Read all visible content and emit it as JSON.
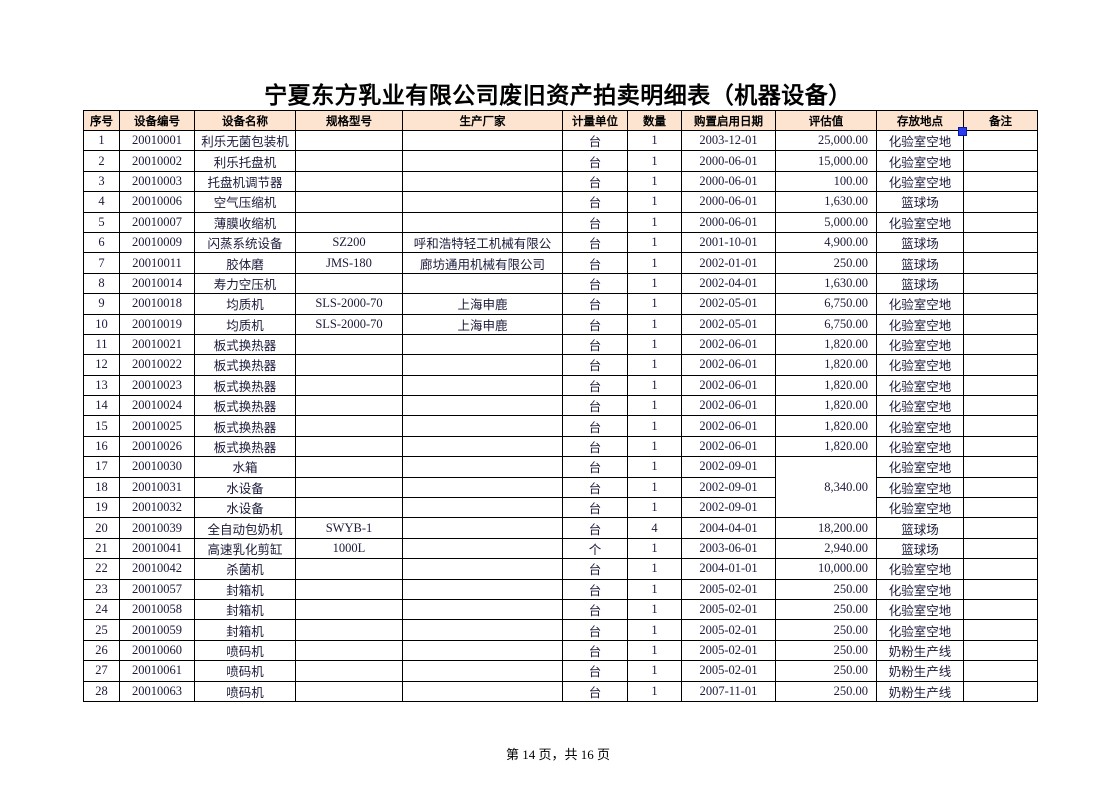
{
  "title": "宁夏东方乳业有限公司废旧资产拍卖明细表（机器设备）",
  "columns": [
    "序号",
    "设备编号",
    "设备名称",
    "规格型号",
    "生产厂家",
    "计量单位",
    "数量",
    "购置启用日期",
    "评估值",
    "存放地点",
    "备注"
  ],
  "rows": [
    [
      "1",
      "20010001",
      "利乐无菌包装机",
      "",
      "",
      "台",
      "1",
      "2003-12-01",
      "25,000.00",
      "化验室空地",
      ""
    ],
    [
      "2",
      "20010002",
      "利乐托盘机",
      "",
      "",
      "台",
      "1",
      "2000-06-01",
      "15,000.00",
      "化验室空地",
      ""
    ],
    [
      "3",
      "20010003",
      "托盘机调节器",
      "",
      "",
      "台",
      "1",
      "2000-06-01",
      "100.00",
      "化验室空地",
      ""
    ],
    [
      "4",
      "20010006",
      "空气压缩机",
      "",
      "",
      "台",
      "1",
      "2000-06-01",
      "1,630.00",
      "篮球场",
      ""
    ],
    [
      "5",
      "20010007",
      "薄膜收缩机",
      "",
      "",
      "台",
      "1",
      "2000-06-01",
      "5,000.00",
      "化验室空地",
      ""
    ],
    [
      "6",
      "20010009",
      "闪蒸系统设备",
      "SZ200",
      "呼和浩特轻工机械有限公",
      "台",
      "1",
      "2001-10-01",
      "4,900.00",
      "篮球场",
      ""
    ],
    [
      "7",
      "20010011",
      "胶体磨",
      "JMS-180",
      "廊坊通用机械有限公司",
      "台",
      "1",
      "2002-01-01",
      "250.00",
      "篮球场",
      ""
    ],
    [
      "8",
      "20010014",
      "寿力空压机",
      "",
      "",
      "台",
      "1",
      "2002-04-01",
      "1,630.00",
      "篮球场",
      ""
    ],
    [
      "9",
      "20010018",
      "均质机",
      "SLS-2000-70",
      "上海申鹿",
      "台",
      "1",
      "2002-05-01",
      "6,750.00",
      "化验室空地",
      ""
    ],
    [
      "10",
      "20010019",
      "均质机",
      "SLS-2000-70",
      "上海申鹿",
      "台",
      "1",
      "2002-05-01",
      "6,750.00",
      "化验室空地",
      ""
    ],
    [
      "11",
      "20010021",
      "板式换热器",
      "",
      "",
      "台",
      "1",
      "2002-06-01",
      "1,820.00",
      "化验室空地",
      ""
    ],
    [
      "12",
      "20010022",
      "板式换热器",
      "",
      "",
      "台",
      "1",
      "2002-06-01",
      "1,820.00",
      "化验室空地",
      ""
    ],
    [
      "13",
      "20010023",
      "板式换热器",
      "",
      "",
      "台",
      "1",
      "2002-06-01",
      "1,820.00",
      "化验室空地",
      ""
    ],
    [
      "14",
      "20010024",
      "板式换热器",
      "",
      "",
      "台",
      "1",
      "2002-06-01",
      "1,820.00",
      "化验室空地",
      ""
    ],
    [
      "15",
      "20010025",
      "板式换热器",
      "",
      "",
      "台",
      "1",
      "2002-06-01",
      "1,820.00",
      "化验室空地",
      ""
    ],
    [
      "16",
      "20010026",
      "板式换热器",
      "",
      "",
      "台",
      "1",
      "2002-06-01",
      "1,820.00",
      "化验室空地",
      ""
    ],
    [
      "17",
      "20010030",
      "水箱",
      "",
      "",
      "台",
      "1",
      "2002-09-01",
      "8,340.00",
      "化验室空地",
      ""
    ],
    [
      "18",
      "20010031",
      "水设备",
      "",
      "",
      "台",
      "1",
      "2002-09-01",
      null,
      "化验室空地",
      ""
    ],
    [
      "19",
      "20010032",
      "水设备",
      "",
      "",
      "台",
      "1",
      "2002-09-01",
      null,
      "化验室空地",
      ""
    ],
    [
      "20",
      "20010039",
      "全自动包奶机",
      "SWYB-1",
      "",
      "台",
      "4",
      "2004-04-01",
      "18,200.00",
      "篮球场",
      ""
    ],
    [
      "21",
      "20010041",
      "高速乳化剪缸",
      "1000L",
      "",
      "个",
      "1",
      "2003-06-01",
      "2,940.00",
      "篮球场",
      ""
    ],
    [
      "22",
      "20010042",
      "杀菌机",
      "",
      "",
      "台",
      "1",
      "2004-01-01",
      "10,000.00",
      "化验室空地",
      ""
    ],
    [
      "23",
      "20010057",
      "封箱机",
      "",
      "",
      "台",
      "1",
      "2005-02-01",
      "250.00",
      "化验室空地",
      ""
    ],
    [
      "24",
      "20010058",
      "封箱机",
      "",
      "",
      "台",
      "1",
      "2005-02-01",
      "250.00",
      "化验室空地",
      ""
    ],
    [
      "25",
      "20010059",
      "封箱机",
      "",
      "",
      "台",
      "1",
      "2005-02-01",
      "250.00",
      "化验室空地",
      ""
    ],
    [
      "26",
      "20010060",
      "喷码机",
      "",
      "",
      "台",
      "1",
      "2005-02-01",
      "250.00",
      "奶粉生产线",
      ""
    ],
    [
      "27",
      "20010061",
      "喷码机",
      "",
      "",
      "台",
      "1",
      "2005-02-01",
      "250.00",
      "奶粉生产线",
      ""
    ],
    [
      "28",
      "20010063",
      "喷码机",
      "",
      "",
      "台",
      "1",
      "2007-11-01",
      "250.00",
      "奶粉生产线",
      ""
    ]
  ],
  "merged_value_rows": [
    17,
    18,
    19
  ],
  "header_fill": "#fde4d0",
  "footer": "第 14 页，共 16 页"
}
